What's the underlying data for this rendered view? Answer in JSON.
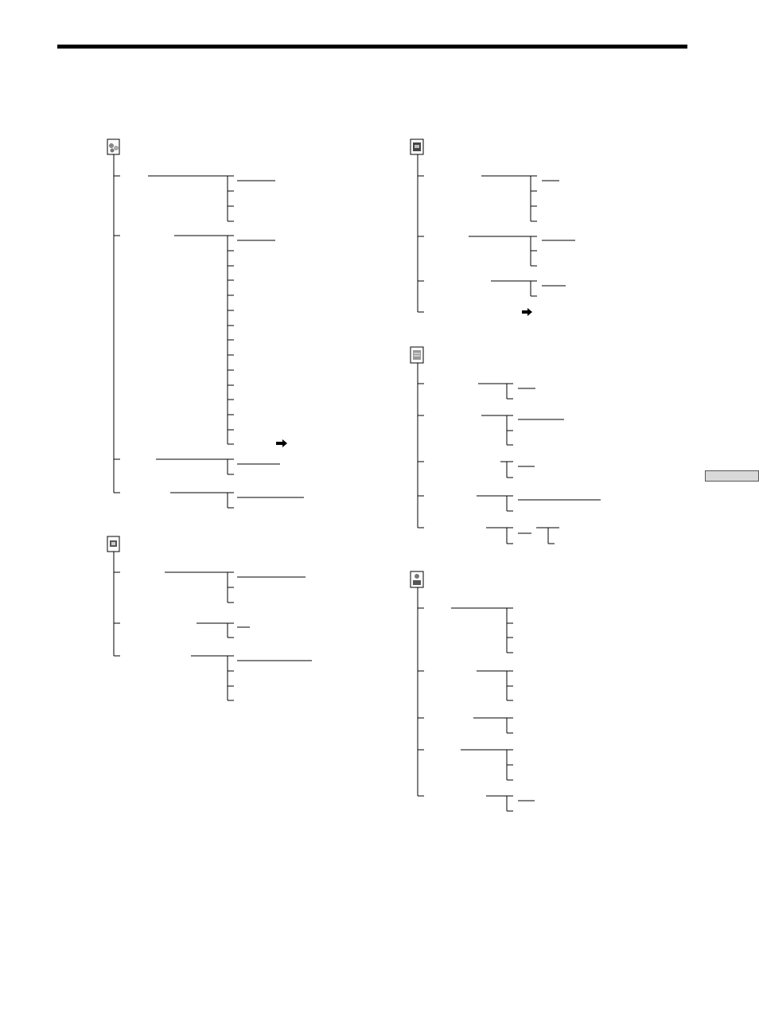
{
  "page": {
    "section_tab": ""
  },
  "menus": [
    {
      "name": "menu-tree-1",
      "icon": "settings-menu-icon"
    },
    {
      "name": "menu-tree-2",
      "icon": "camera-menu-icon"
    },
    {
      "name": "menu-tree-3",
      "icon": "tape-menu-icon"
    },
    {
      "name": "menu-tree-4",
      "icon": "memory-menu-icon"
    },
    {
      "name": "menu-tree-5",
      "icon": "etc-menu-icon"
    }
  ],
  "arrows": [
    "right-arrow-icon",
    "right-arrow-icon"
  ],
  "colors": {
    "line": "#000000",
    "tab": "#d9d9d9"
  }
}
